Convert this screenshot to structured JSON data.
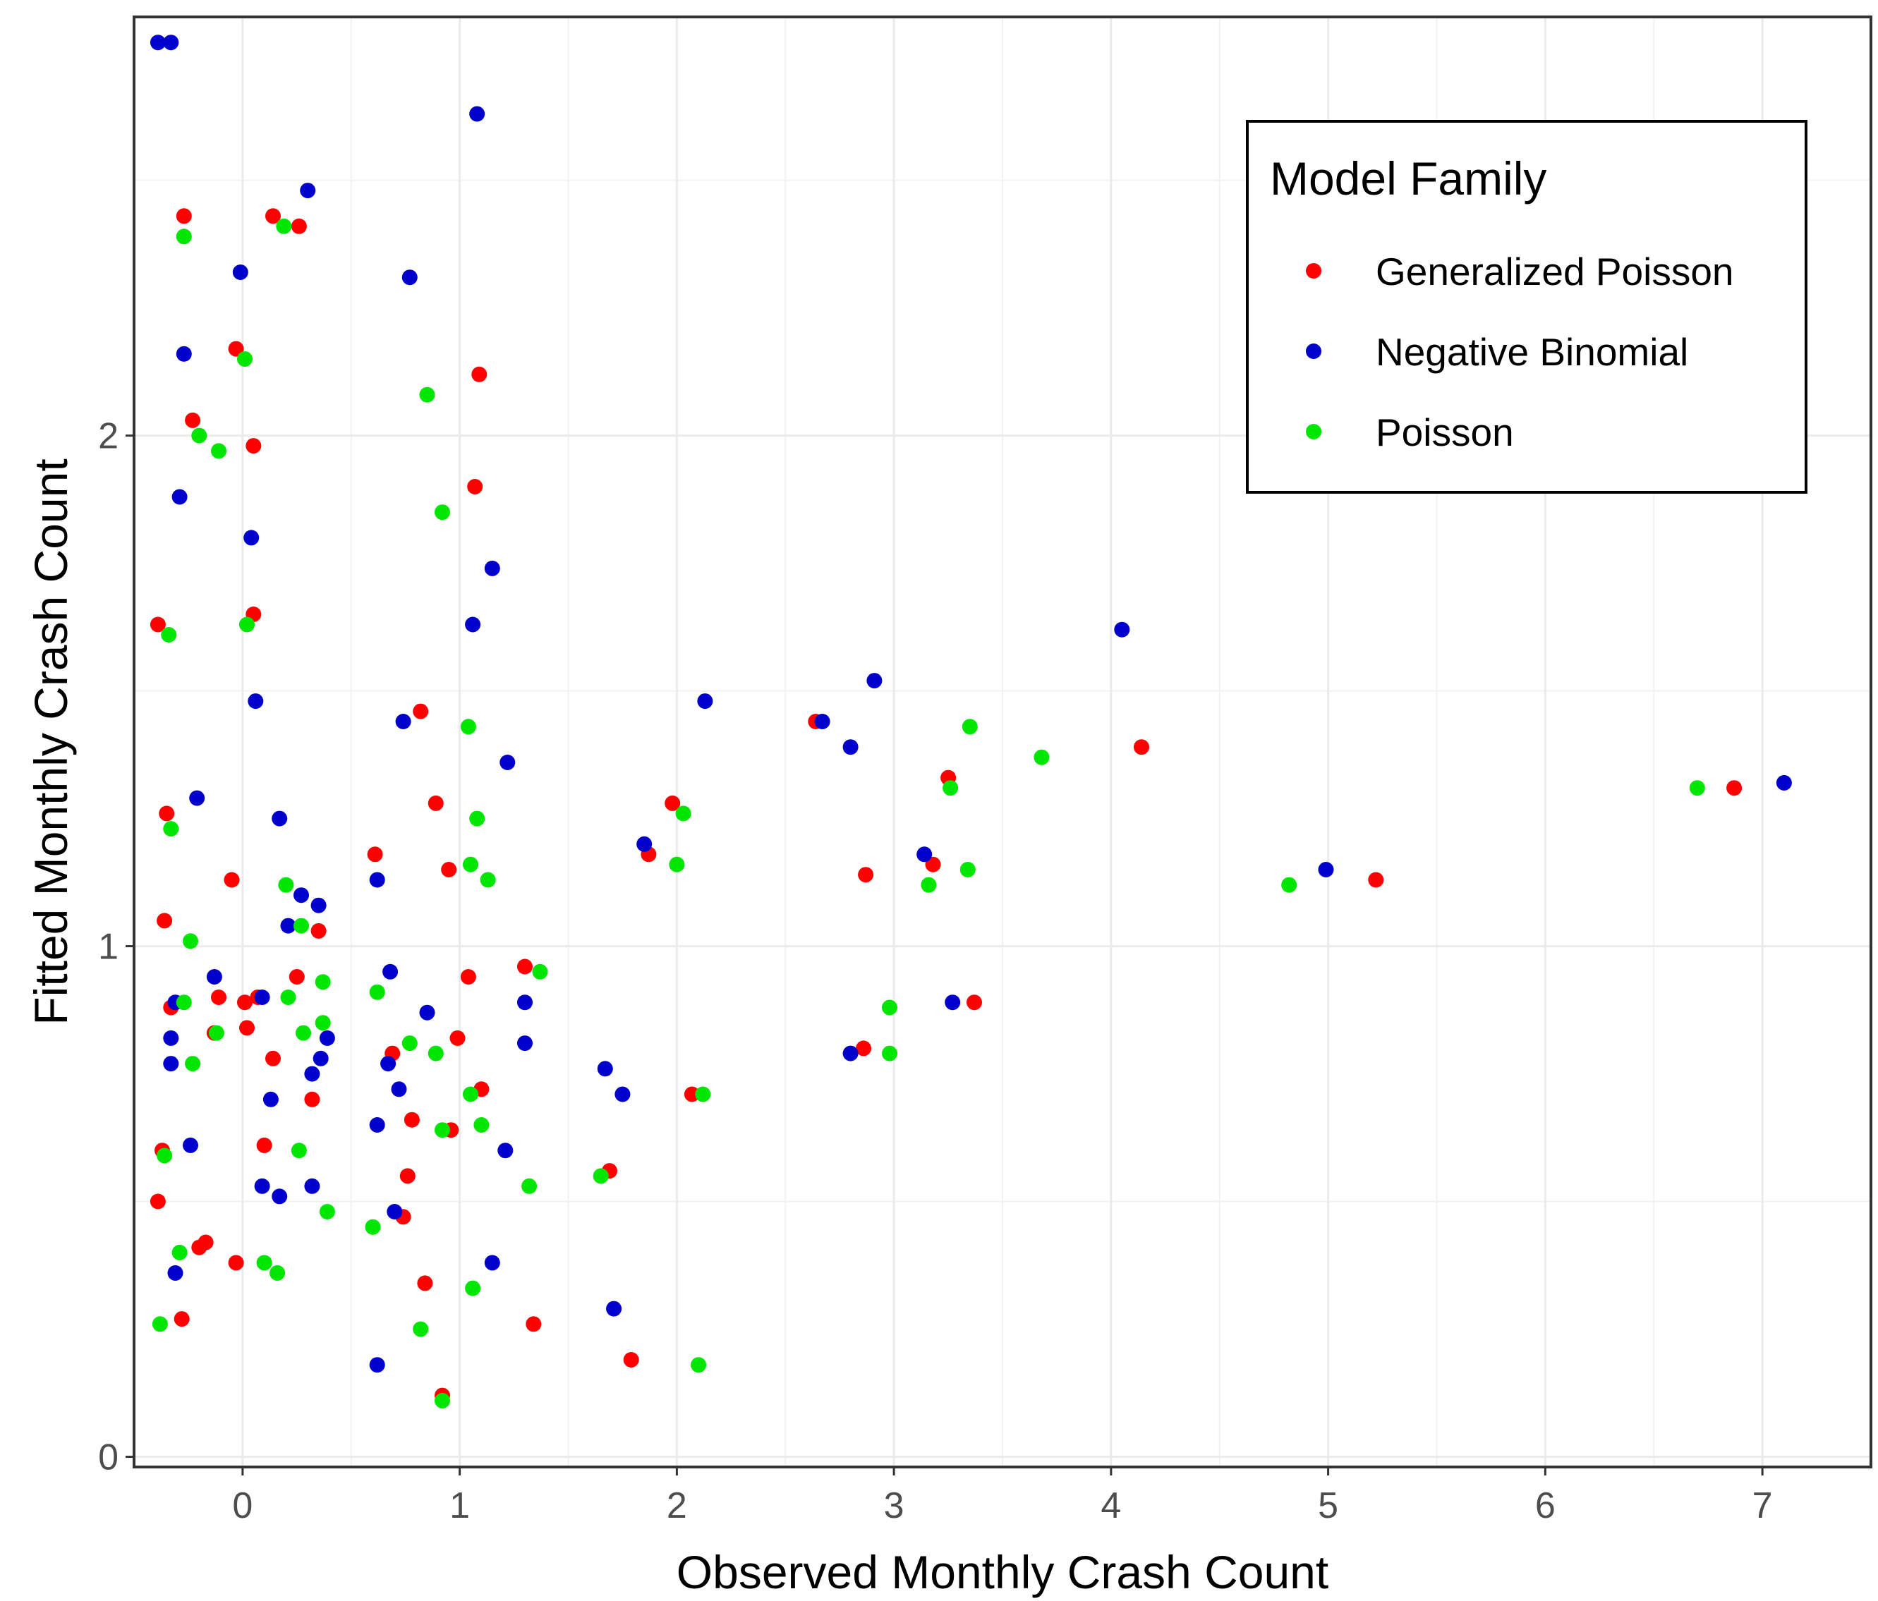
{
  "chart_data": {
    "type": "scatter",
    "title": "",
    "xlabel": "Observed Monthly Crash Count",
    "ylabel": "Fitted Monthly Crash Count",
    "xlim": [
      -0.5,
      7.5
    ],
    "ylim": [
      -0.02,
      2.82
    ],
    "xticks": [
      0,
      1,
      2,
      3,
      4,
      5,
      6,
      7
    ],
    "yticks": [
      0,
      1,
      2
    ],
    "grid": true,
    "legend": {
      "title": "Model Family",
      "position": "top-right"
    },
    "series": [
      {
        "name": "Generalized Poisson",
        "color": "#ff0000",
        "points": [
          [
            -0.27,
            2.43
          ],
          [
            0.14,
            2.43
          ],
          [
            0.26,
            2.41
          ],
          [
            -0.03,
            2.17
          ],
          [
            1.09,
            2.12
          ],
          [
            -0.23,
            2.03
          ],
          [
            0.05,
            1.98
          ],
          [
            1.07,
            1.9
          ],
          [
            -0.39,
            1.63
          ],
          [
            0.05,
            1.65
          ],
          [
            0.82,
            1.46
          ],
          [
            2.64,
            1.44
          ],
          [
            4.14,
            1.39
          ],
          [
            3.25,
            1.33
          ],
          [
            0.89,
            1.28
          ],
          [
            1.98,
            1.28
          ],
          [
            -0.35,
            1.26
          ],
          [
            0.61,
            1.18
          ],
          [
            1.87,
            1.18
          ],
          [
            3.18,
            1.16
          ],
          [
            0.95,
            1.15
          ],
          [
            2.87,
            1.14
          ],
          [
            5.22,
            1.13
          ],
          [
            -0.05,
            1.13
          ],
          [
            -0.36,
            1.05
          ],
          [
            0.35,
            1.03
          ],
          [
            1.3,
            0.96
          ],
          [
            0.25,
            0.94
          ],
          [
            1.04,
            0.94
          ],
          [
            -0.33,
            0.88
          ],
          [
            -0.11,
            0.9
          ],
          [
            0.07,
            0.9
          ],
          [
            0.01,
            0.89
          ],
          [
            3.37,
            0.89
          ],
          [
            -0.13,
            0.83
          ],
          [
            0.02,
            0.84
          ],
          [
            0.99,
            0.82
          ],
          [
            2.86,
            0.8
          ],
          [
            0.69,
            0.79
          ],
          [
            0.14,
            0.78
          ],
          [
            1.1,
            0.72
          ],
          [
            2.07,
            0.71
          ],
          [
            0.32,
            0.7
          ],
          [
            0.78,
            0.66
          ],
          [
            0.96,
            0.64
          ],
          [
            0.1,
            0.61
          ],
          [
            -0.37,
            0.6
          ],
          [
            1.69,
            0.56
          ],
          [
            0.76,
            0.55
          ],
          [
            -0.39,
            0.5
          ],
          [
            0.74,
            0.47
          ],
          [
            -0.17,
            0.42
          ],
          [
            -0.2,
            0.41
          ],
          [
            -0.03,
            0.38
          ],
          [
            0.84,
            0.34
          ],
          [
            -0.28,
            0.27
          ],
          [
            1.34,
            0.26
          ],
          [
            1.79,
            0.19
          ],
          [
            0.92,
            0.12
          ],
          [
            6.87,
            1.31
          ]
        ]
      },
      {
        "name": "Negative Binomial",
        "color": "#0000cc",
        "points": [
          [
            -0.39,
            2.77
          ],
          [
            -0.33,
            2.77
          ],
          [
            1.08,
            2.63
          ],
          [
            0.3,
            2.48
          ],
          [
            -0.01,
            2.32
          ],
          [
            0.77,
            2.31
          ],
          [
            -0.27,
            2.16
          ],
          [
            -0.29,
            1.88
          ],
          [
            0.04,
            1.8
          ],
          [
            1.15,
            1.74
          ],
          [
            1.06,
            1.63
          ],
          [
            4.05,
            1.62
          ],
          [
            2.91,
            1.52
          ],
          [
            0.06,
            1.48
          ],
          [
            2.13,
            1.48
          ],
          [
            0.74,
            1.44
          ],
          [
            2.67,
            1.44
          ],
          [
            2.8,
            1.39
          ],
          [
            1.22,
            1.36
          ],
          [
            7.1,
            1.32
          ],
          [
            -0.21,
            1.29
          ],
          [
            0.17,
            1.25
          ],
          [
            1.85,
            1.2
          ],
          [
            3.14,
            1.18
          ],
          [
            4.99,
            1.15
          ],
          [
            0.62,
            1.13
          ],
          [
            0.27,
            1.1
          ],
          [
            0.35,
            1.08
          ],
          [
            0.21,
            1.04
          ],
          [
            0.68,
            0.95
          ],
          [
            -0.13,
            0.94
          ],
          [
            -0.31,
            0.89
          ],
          [
            0.09,
            0.9
          ],
          [
            1.3,
            0.89
          ],
          [
            3.27,
            0.89
          ],
          [
            0.85,
            0.87
          ],
          [
            -0.33,
            0.82
          ],
          [
            0.39,
            0.82
          ],
          [
            1.3,
            0.81
          ],
          [
            -0.33,
            0.77
          ],
          [
            0.67,
            0.77
          ],
          [
            0.36,
            0.78
          ],
          [
            2.8,
            0.79
          ],
          [
            0.32,
            0.75
          ],
          [
            1.67,
            0.76
          ],
          [
            0.72,
            0.72
          ],
          [
            1.75,
            0.71
          ],
          [
            0.13,
            0.7
          ],
          [
            0.62,
            0.65
          ],
          [
            -0.24,
            0.61
          ],
          [
            1.21,
            0.6
          ],
          [
            0.09,
            0.53
          ],
          [
            0.32,
            0.53
          ],
          [
            0.17,
            0.51
          ],
          [
            0.7,
            0.48
          ],
          [
            1.15,
            0.38
          ],
          [
            -0.31,
            0.36
          ],
          [
            1.71,
            0.29
          ],
          [
            0.62,
            0.18
          ]
        ]
      },
      {
        "name": "Poisson",
        "color": "#00e600",
        "points": [
          [
            -0.27,
            2.39
          ],
          [
            0.19,
            2.41
          ],
          [
            0.01,
            2.15
          ],
          [
            0.85,
            2.08
          ],
          [
            -0.2,
            2.0
          ],
          [
            -0.11,
            1.97
          ],
          [
            0.92,
            1.85
          ],
          [
            0.02,
            1.63
          ],
          [
            -0.34,
            1.61
          ],
          [
            1.04,
            1.43
          ],
          [
            3.35,
            1.43
          ],
          [
            3.68,
            1.37
          ],
          [
            3.26,
            1.31
          ],
          [
            6.7,
            1.31
          ],
          [
            2.03,
            1.26
          ],
          [
            -0.33,
            1.23
          ],
          [
            1.08,
            1.25
          ],
          [
            2.0,
            1.16
          ],
          [
            1.05,
            1.16
          ],
          [
            3.34,
            1.15
          ],
          [
            0.2,
            1.12
          ],
          [
            1.13,
            1.13
          ],
          [
            3.16,
            1.12
          ],
          [
            4.82,
            1.12
          ],
          [
            0.27,
            1.04
          ],
          [
            -0.24,
            1.01
          ],
          [
            1.37,
            0.95
          ],
          [
            0.37,
            0.93
          ],
          [
            0.62,
            0.91
          ],
          [
            -0.27,
            0.89
          ],
          [
            0.21,
            0.9
          ],
          [
            2.98,
            0.88
          ],
          [
            0.37,
            0.85
          ],
          [
            0.28,
            0.83
          ],
          [
            -0.12,
            0.83
          ],
          [
            0.77,
            0.81
          ],
          [
            0.89,
            0.79
          ],
          [
            2.98,
            0.79
          ],
          [
            -0.23,
            0.77
          ],
          [
            1.05,
            0.71
          ],
          [
            2.12,
            0.71
          ],
          [
            1.1,
            0.65
          ],
          [
            0.92,
            0.64
          ],
          [
            0.26,
            0.6
          ],
          [
            -0.36,
            0.59
          ],
          [
            1.65,
            0.55
          ],
          [
            1.32,
            0.53
          ],
          [
            0.39,
            0.48
          ],
          [
            0.6,
            0.45
          ],
          [
            -0.29,
            0.4
          ],
          [
            0.1,
            0.38
          ],
          [
            0.16,
            0.36
          ],
          [
            1.06,
            0.33
          ],
          [
            -0.38,
            0.26
          ],
          [
            0.82,
            0.25
          ],
          [
            2.1,
            0.18
          ],
          [
            0.92,
            0.11
          ]
        ]
      }
    ]
  }
}
